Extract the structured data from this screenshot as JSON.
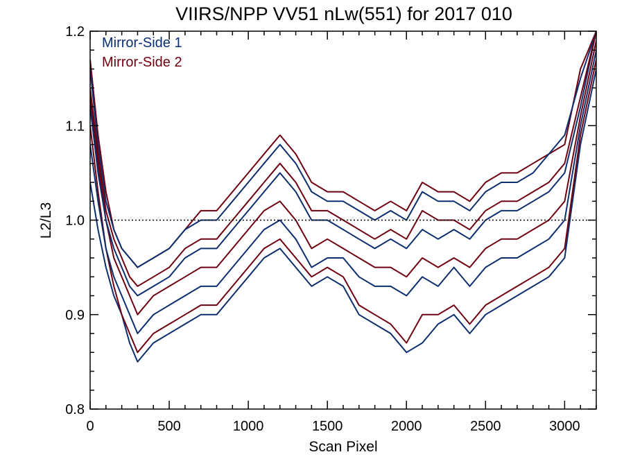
{
  "chart_data": {
    "type": "line",
    "title": "VIIRS/NPP VV51 nLw(551) for 2017 010",
    "xlabel": "Scan Pixel",
    "ylabel": "L2/L3",
    "xlim": [
      0,
      3200
    ],
    "ylim": [
      0.8,
      1.2
    ],
    "x_ticks": [
      0,
      500,
      1000,
      1500,
      2000,
      2500,
      3000
    ],
    "x_tick_labels": [
      "0",
      "500",
      "1000",
      "1500",
      "2000",
      "2500",
      "3000"
    ],
    "y_ticks": [
      0.8,
      0.9,
      1.0,
      1.1,
      1.2
    ],
    "y_tick_labels": [
      "0.8",
      "0.9",
      "1.0",
      "1.1",
      "1.2"
    ],
    "reference_line": {
      "y": 1.0,
      "style": "dotted"
    },
    "legend_position": "top-left",
    "colors": {
      "Mirror-Side 1": "#0b2f6e",
      "Mirror-Side 2": "#6e0010"
    },
    "series": [
      {
        "name": "Mirror-Side 1",
        "lines": [
          {
            "x": [
              0,
              50,
              100,
              150,
              200,
              250,
              300,
              400,
              500,
              600,
              700,
              800,
              900,
              1000,
              1100,
              1200,
              1300,
              1400,
              1500,
              1600,
              1700,
              1800,
              1900,
              2000,
              2100,
              2200,
              2300,
              2400,
              2500,
              2600,
              2700,
              2800,
              2900,
              3000,
              3100,
              3200
            ],
            "y": [
              1.04,
              0.99,
              0.95,
              0.92,
              0.9,
              0.87,
              0.85,
              0.87,
              0.88,
              0.89,
              0.9,
              0.9,
              0.92,
              0.94,
              0.96,
              0.97,
              0.95,
              0.93,
              0.94,
              0.93,
              0.9,
              0.89,
              0.88,
              0.86,
              0.87,
              0.89,
              0.9,
              0.88,
              0.9,
              0.91,
              0.92,
              0.93,
              0.94,
              0.96,
              1.08,
              1.16
            ]
          },
          {
            "x": [
              0,
              50,
              100,
              150,
              200,
              250,
              300,
              400,
              500,
              600,
              700,
              800,
              900,
              1000,
              1100,
              1200,
              1300,
              1400,
              1500,
              1600,
              1700,
              1800,
              1900,
              2000,
              2100,
              2200,
              2300,
              2400,
              2500,
              2600,
              2700,
              2800,
              2900,
              3000,
              3100,
              3200
            ],
            "y": [
              1.08,
              1.02,
              0.97,
              0.94,
              0.92,
              0.9,
              0.88,
              0.9,
              0.91,
              0.92,
              0.93,
              0.93,
              0.95,
              0.97,
              0.99,
              1.0,
              0.98,
              0.95,
              0.96,
              0.96,
              0.94,
              0.93,
              0.93,
              0.92,
              0.94,
              0.93,
              0.95,
              0.93,
              0.95,
              0.96,
              0.96,
              0.97,
              0.98,
              1.0,
              1.1,
              1.18
            ]
          },
          {
            "x": [
              0,
              50,
              100,
              150,
              200,
              250,
              300,
              400,
              500,
              600,
              700,
              800,
              900,
              1000,
              1100,
              1200,
              1300,
              1400,
              1500,
              1600,
              1700,
              1800,
              1900,
              2000,
              2100,
              2200,
              2300,
              2400,
              2500,
              2600,
              2700,
              2800,
              2900,
              3000,
              3100,
              3200
            ],
            "y": [
              1.12,
              1.05,
              1.0,
              0.97,
              0.95,
              0.93,
              0.92,
              0.93,
              0.94,
              0.96,
              0.97,
              0.97,
              0.99,
              1.01,
              1.03,
              1.05,
              1.03,
              1.0,
              1.0,
              0.99,
              0.98,
              0.97,
              0.98,
              0.97,
              0.99,
              0.98,
              0.99,
              0.98,
              1.0,
              1.01,
              1.01,
              1.02,
              1.03,
              1.05,
              1.12,
              1.2
            ]
          },
          {
            "x": [
              0,
              50,
              100,
              150,
              200,
              250,
              300,
              400,
              500,
              600,
              700,
              800,
              900,
              1000,
              1100,
              1200,
              1300,
              1400,
              1500,
              1600,
              1700,
              1800,
              1900,
              2000,
              2100,
              2200,
              2300,
              2400,
              2500,
              2600,
              2700,
              2800,
              2900,
              3000,
              3100,
              3200
            ],
            "y": [
              1.16,
              1.08,
              1.02,
              0.99,
              0.97,
              0.96,
              0.95,
              0.96,
              0.97,
              0.99,
              1.0,
              1.0,
              1.02,
              1.04,
              1.06,
              1.08,
              1.06,
              1.03,
              1.02,
              1.02,
              1.01,
              1.0,
              1.01,
              1.0,
              1.03,
              1.02,
              1.02,
              1.01,
              1.03,
              1.04,
              1.04,
              1.05,
              1.07,
              1.09,
              1.15,
              1.2
            ]
          }
        ]
      },
      {
        "name": "Mirror-Side 2",
        "lines": [
          {
            "x": [
              0,
              50,
              100,
              150,
              200,
              250,
              300,
              400,
              500,
              600,
              700,
              800,
              900,
              1000,
              1100,
              1200,
              1300,
              1400,
              1500,
              1600,
              1700,
              1800,
              1900,
              2000,
              2100,
              2200,
              2300,
              2400,
              2500,
              2600,
              2700,
              2800,
              2900,
              3000,
              3100,
              3200
            ],
            "y": [
              1.1,
              1.03,
              0.97,
              0.93,
              0.9,
              0.88,
              0.86,
              0.88,
              0.89,
              0.9,
              0.91,
              0.91,
              0.93,
              0.95,
              0.97,
              0.98,
              0.96,
              0.94,
              0.95,
              0.94,
              0.91,
              0.9,
              0.89,
              0.87,
              0.9,
              0.9,
              0.91,
              0.89,
              0.91,
              0.92,
              0.93,
              0.94,
              0.95,
              0.97,
              1.09,
              1.17
            ]
          },
          {
            "x": [
              0,
              50,
              100,
              150,
              200,
              250,
              300,
              400,
              500,
              600,
              700,
              800,
              900,
              1000,
              1100,
              1200,
              1300,
              1400,
              1500,
              1600,
              1700,
              1800,
              1900,
              2000,
              2100,
              2200,
              2300,
              2400,
              2500,
              2600,
              2700,
              2800,
              2900,
              3000,
              3100,
              3200
            ],
            "y": [
              1.13,
              1.06,
              1.0,
              0.96,
              0.94,
              0.92,
              0.9,
              0.92,
              0.93,
              0.94,
              0.95,
              0.95,
              0.97,
              0.99,
              1.01,
              1.02,
              1.0,
              0.97,
              0.98,
              0.97,
              0.96,
              0.95,
              0.95,
              0.94,
              0.96,
              0.95,
              0.96,
              0.95,
              0.97,
              0.98,
              0.98,
              0.99,
              1.0,
              1.02,
              1.11,
              1.19
            ]
          },
          {
            "x": [
              0,
              50,
              100,
              150,
              200,
              250,
              300,
              400,
              500,
              600,
              700,
              800,
              900,
              1000,
              1100,
              1200,
              1300,
              1400,
              1500,
              1600,
              1700,
              1800,
              1900,
              2000,
              2100,
              2200,
              2300,
              2400,
              2500,
              2600,
              2700,
              2800,
              2900,
              3000,
              3100,
              3200
            ],
            "y": [
              1.17,
              1.09,
              1.03,
              0.99,
              0.97,
              0.96,
              0.95,
              0.96,
              0.97,
              0.99,
              1.01,
              1.01,
              1.03,
              1.05,
              1.07,
              1.09,
              1.07,
              1.04,
              1.03,
              1.03,
              1.02,
              1.01,
              1.02,
              1.01,
              1.04,
              1.03,
              1.03,
              1.02,
              1.04,
              1.05,
              1.05,
              1.06,
              1.07,
              1.08,
              1.16,
              1.2
            ]
          },
          {
            "x": [
              0,
              50,
              100,
              150,
              200,
              250,
              300,
              400,
              500,
              600,
              700,
              800,
              900,
              1000,
              1100,
              1200,
              1300,
              1400,
              1500,
              1600,
              1700,
              1800,
              1900,
              2000,
              2100,
              2200,
              2300,
              2400,
              2500,
              2600,
              2700,
              2800,
              2900,
              3000,
              3100,
              3200
            ],
            "y": [
              1.14,
              1.07,
              1.01,
              0.98,
              0.96,
              0.94,
              0.93,
              0.94,
              0.95,
              0.97,
              0.98,
              0.98,
              1.0,
              1.02,
              1.04,
              1.06,
              1.04,
              1.01,
              1.01,
              1.0,
              0.99,
              0.98,
              0.99,
              0.98,
              1.01,
              1.0,
              1.0,
              0.99,
              1.01,
              1.02,
              1.02,
              1.03,
              1.04,
              1.06,
              1.13,
              1.2
            ]
          }
        ]
      }
    ]
  }
}
